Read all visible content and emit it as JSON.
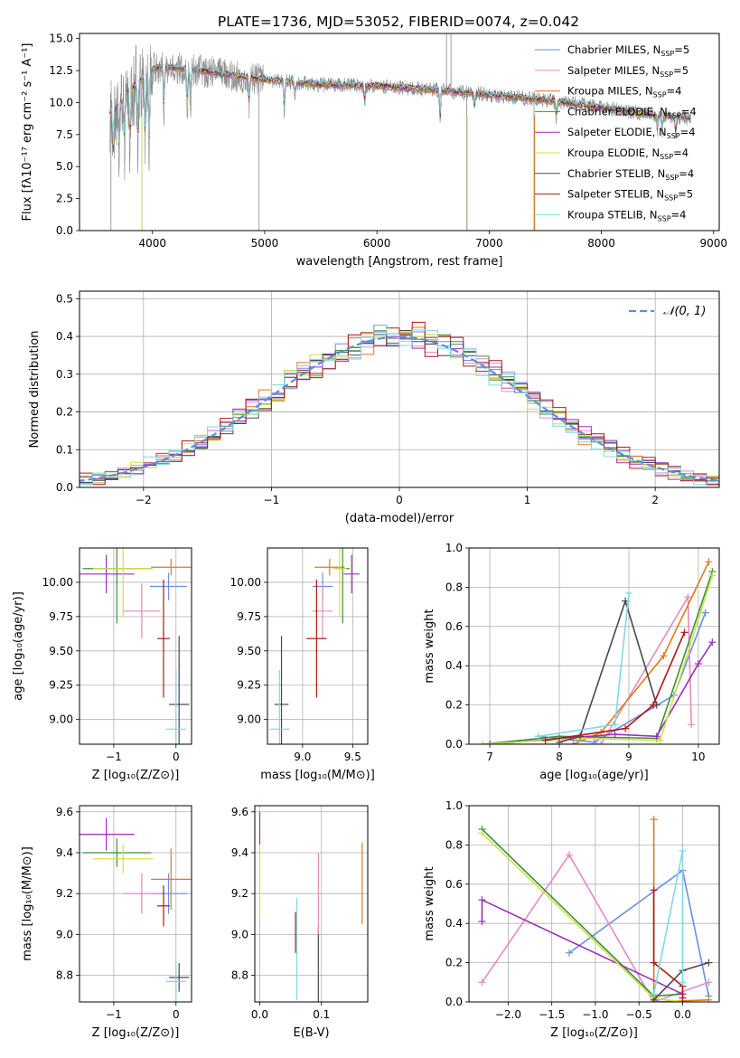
{
  "title": "PLATE=1736, MJD=53052, FIBERID=0074, z=0.042",
  "colors": {
    "chabrier_miles": "#6b8ee6",
    "salpeter_miles": "#e58ac3",
    "kroupa_miles": "#e07a1a",
    "chabrier_elodie": "#3f8f3f",
    "salpeter_elodie": "#9b30b8",
    "kroupa_elodie": "#cfe04a",
    "chabrier_stelib": "#4a4a4a",
    "salpeter_stelib": "#b01818",
    "kroupa_stelib": "#7fd8e6",
    "gaussian": "#5b8ed8",
    "data": "#8a8a8a"
  },
  "chart_data": [
    {
      "id": "spectrum",
      "type": "line",
      "xlabel": "wavelength [Angstrom, rest frame]",
      "ylabel": "Flux [fλ10⁻¹⁷ erg cm⁻² s⁻¹ A⁻¹]",
      "xlim": [
        3350,
        9050
      ],
      "ylim": [
        0,
        15.4
      ],
      "xticks": [
        "4000",
        "5000",
        "6000",
        "7000",
        "8000",
        "9000"
      ],
      "yticks": [
        "0.0",
        "2.5",
        "5.0",
        "7.5",
        "10.0",
        "12.5",
        "15.0"
      ],
      "legend_position": "top-right",
      "legend": [
        {
          "name": "Chabrier MILES",
          "n": "5"
        },
        {
          "name": "Salpeter MILES",
          "n": "5"
        },
        {
          "name": "Kroupa MILES",
          "n": "4"
        },
        {
          "name": "Chabrier ELODIE",
          "n": "4"
        },
        {
          "name": "Salpeter ELODIE",
          "n": "4"
        },
        {
          "name": "Kroupa ELODIE",
          "n": "4"
        },
        {
          "name": "Chabrier STELIB",
          "n": "4"
        },
        {
          "name": "Salpeter STELIB",
          "n": "5"
        },
        {
          "name": "Kroupa STELIB",
          "n": "4"
        }
      ],
      "nssp_label": "N",
      "nssp_sub": "SSP",
      "continuum": [
        [
          3620,
          9.2
        ],
        [
          3700,
          9.8
        ],
        [
          3800,
          11.0
        ],
        [
          3900,
          11.8
        ],
        [
          4000,
          12.6
        ],
        [
          4100,
          12.8
        ],
        [
          4300,
          12.6
        ],
        [
          4500,
          12.4
        ],
        [
          4800,
          12.0
        ],
        [
          5000,
          11.8
        ],
        [
          5500,
          11.4
        ],
        [
          6000,
          11.3
        ],
        [
          6500,
          11.0
        ],
        [
          7000,
          10.6
        ],
        [
          7500,
          10.2
        ],
        [
          8000,
          9.6
        ],
        [
          8500,
          9.0
        ],
        [
          8800,
          8.8
        ]
      ],
      "features": [
        [
          3650,
          4.2
        ],
        [
          3700,
          3.8
        ],
        [
          3750,
          3.8
        ],
        [
          3800,
          5.0
        ],
        [
          3870,
          5.0
        ],
        [
          3935,
          6.2
        ],
        [
          3970,
          6.8
        ],
        [
          4102,
          3.6
        ],
        [
          4310,
          3.0
        ],
        [
          4340,
          3.2
        ],
        [
          4861,
          2.2
        ],
        [
          5175,
          2.4
        ],
        [
          5270,
          1.2
        ],
        [
          5890,
          1.4
        ],
        [
          6563,
          2.6
        ],
        [
          6870,
          1.2
        ],
        [
          7600,
          1.4
        ],
        [
          8500,
          1.2
        ],
        [
          8542,
          1.5
        ],
        [
          8662,
          1.5
        ]
      ],
      "spikes": [
        [
          3630,
          0.0
        ],
        [
          3905,
          0.0
        ],
        [
          4950,
          0.0
        ],
        [
          6800,
          0.0
        ],
        [
          7400,
          0.0
        ],
        [
          6620,
          15.4
        ],
        [
          6660,
          15.4
        ]
      ]
    },
    {
      "id": "residual-histogram",
      "type": "line",
      "xlabel": "(data-model)/error",
      "ylabel": "Normed distribution",
      "xlim": [
        -2.5,
        2.5
      ],
      "ylim": [
        0,
        0.52
      ],
      "xticks": [
        "−2",
        "−1",
        "0",
        "1",
        "2"
      ],
      "yticks": [
        "0.0",
        "0.1",
        "0.2",
        "0.3",
        "0.4",
        "0.5"
      ],
      "bin_width": 0.1,
      "legend_position": "top-right",
      "legend": "𝒩(0, 1)",
      "gaussian": {
        "mean": 0,
        "sigma": 1
      },
      "series_noise_amp": [
        0.022,
        0.026,
        0.03,
        0.024,
        0.032,
        0.028,
        0.02,
        0.034,
        0.03
      ]
    },
    {
      "id": "age-vs-Z",
      "type": "scatter",
      "xlabel": "Z [log₁₀(Z/Z⊙)]",
      "ylabel": "age  [log₁₀(age/yr)]",
      "xlim": [
        -1.55,
        0.25
      ],
      "ylim": [
        8.82,
        10.25
      ],
      "xticks": [
        "−1",
        "0"
      ],
      "xtick_values": [
        -1,
        0
      ],
      "yticks": [
        "9.00",
        "9.25",
        "9.50",
        "9.75",
        "10.00"
      ],
      "ytick_values": [
        9.0,
        9.25,
        9.5,
        9.75,
        10.0
      ],
      "points": [
        {
          "x": -0.12,
          "xerr": 0.3,
          "y": 9.97,
          "yerr": 0.1,
          "c": "chabrier_miles"
        },
        {
          "x": -0.55,
          "xerr": 0.3,
          "y": 9.79,
          "yerr": 0.2,
          "c": "salpeter_miles"
        },
        {
          "x": -0.08,
          "xerr": 0.32,
          "y": 10.11,
          "yerr": 0.06,
          "c": "kroupa_miles"
        },
        {
          "x": -0.95,
          "xerr": 0.55,
          "y": 10.1,
          "yerr": 0.4,
          "c": "chabrier_elodie"
        },
        {
          "x": -1.12,
          "xerr": 0.45,
          "y": 10.06,
          "yerr": 0.14,
          "c": "salpeter_elodie"
        },
        {
          "x": -0.85,
          "xerr": 0.48,
          "y": 10.1,
          "yerr": 0.35,
          "c": "kroupa_elodie"
        },
        {
          "x": 0.05,
          "xerr": 0.16,
          "y": 9.11,
          "yerr": 0.5,
          "c": "chabrier_stelib"
        },
        {
          "x": -0.2,
          "xerr": 0.1,
          "y": 9.59,
          "yerr": 0.43,
          "c": "salpeter_stelib"
        },
        {
          "x": 0.0,
          "xerr": 0.16,
          "y": 8.93,
          "yerr": 0.43,
          "c": "kroupa_stelib"
        }
      ]
    },
    {
      "id": "age-vs-mass",
      "type": "scatter",
      "xlabel": "mass [log₁₀(M/M⊙)]",
      "ylabel": "",
      "xlim": [
        8.65,
        9.65
      ],
      "ylim": [
        8.82,
        10.25
      ],
      "xticks": [
        "9.0",
        "9.5"
      ],
      "xtick_values": [
        9.0,
        9.5
      ],
      "yticks": [
        "9.00",
        "9.25",
        "9.50",
        "9.75",
        "10.00"
      ],
      "ytick_values": [
        9.0,
        9.25,
        9.5,
        9.75,
        10.0
      ],
      "points": [
        {
          "x": 9.2,
          "xerr": 0.1,
          "y": 9.97,
          "yerr": 0.1,
          "c": "chabrier_miles"
        },
        {
          "x": 9.2,
          "xerr": 0.1,
          "y": 9.79,
          "yerr": 0.2,
          "c": "salpeter_miles"
        },
        {
          "x": 9.27,
          "xerr": 0.15,
          "y": 10.11,
          "yerr": 0.06,
          "c": "kroupa_miles"
        },
        {
          "x": 9.4,
          "xerr": 0.07,
          "y": 10.1,
          "yerr": 0.4,
          "c": "chabrier_elodie"
        },
        {
          "x": 9.49,
          "xerr": 0.08,
          "y": 10.06,
          "yerr": 0.14,
          "c": "salpeter_elodie"
        },
        {
          "x": 9.37,
          "xerr": 0.07,
          "y": 10.1,
          "yerr": 0.35,
          "c": "kroupa_elodie"
        },
        {
          "x": 8.79,
          "xerr": 0.07,
          "y": 9.11,
          "yerr": 0.5,
          "c": "chabrier_stelib"
        },
        {
          "x": 9.14,
          "xerr": 0.1,
          "y": 9.59,
          "yerr": 0.43,
          "c": "salpeter_stelib"
        },
        {
          "x": 8.77,
          "xerr": 0.1,
          "y": 8.93,
          "yerr": 0.43,
          "c": "kroupa_stelib"
        }
      ]
    },
    {
      "id": "massweight-vs-age",
      "type": "line",
      "xlabel": "age  [log₁₀(age/yr)]",
      "ylabel": "mass weight",
      "xlim": [
        6.7,
        10.3
      ],
      "ylim": [
        0,
        1.0
      ],
      "xticks": [
        "7",
        "8",
        "9",
        "10"
      ],
      "xtick_values": [
        7,
        8,
        9,
        10
      ],
      "yticks": [
        "0.0",
        "0.2",
        "0.4",
        "0.6",
        "0.8",
        "1.0"
      ],
      "ytick_values": [
        0,
        0.2,
        0.4,
        0.6,
        0.8,
        1.0
      ],
      "series": [
        {
          "c": "chabrier_miles",
          "x": [
            7.7,
            8.5,
            9.65,
            10.1
          ],
          "y": [
            0.04,
            0.01,
            0.25,
            0.67
          ]
        },
        {
          "c": "salpeter_miles",
          "x": [
            7.0,
            8.6,
            9.85,
            9.9
          ],
          "y": [
            0.0,
            0.0,
            0.75,
            0.1
          ]
        },
        {
          "c": "kroupa_miles",
          "x": [
            8.2,
            8.6,
            9.5,
            10.15
          ],
          "y": [
            0.0,
            0.06,
            0.45,
            0.93
          ]
        },
        {
          "c": "chabrier_elodie",
          "x": [
            6.9,
            8.0,
            9.4,
            10.2
          ],
          "y": [
            0.0,
            0.04,
            0.03,
            0.88
          ]
        },
        {
          "c": "salpeter_elodie",
          "x": [
            7.0,
            8.8,
            9.4,
            10.0,
            10.2
          ],
          "y": [
            0.0,
            0.05,
            0.04,
            0.41,
            0.52
          ]
        },
        {
          "c": "kroupa_elodie",
          "x": [
            6.9,
            8.3,
            9.45,
            10.2
          ],
          "y": [
            0.0,
            0.03,
            0.02,
            0.86
          ]
        },
        {
          "c": "chabrier_stelib",
          "x": [
            8.0,
            8.3,
            8.95,
            9.4
          ],
          "y": [
            0.01,
            0.04,
            0.73,
            0.2
          ]
        },
        {
          "c": "salpeter_stelib",
          "x": [
            7.8,
            8.95,
            9.35,
            9.8
          ],
          "y": [
            0.02,
            0.08,
            0.2,
            0.57
          ]
        },
        {
          "c": "kroupa_stelib",
          "x": [
            7.7,
            8.8,
            9.0
          ],
          "y": [
            0.04,
            0.1,
            0.77
          ]
        }
      ]
    },
    {
      "id": "mass-vs-Z",
      "type": "scatter",
      "xlabel": "Z [log₁₀(Z/Z⊙)]",
      "ylabel": "mass [log₁₀(M/M⊙)]",
      "xlim": [
        -1.55,
        0.25
      ],
      "ylim": [
        8.67,
        9.63
      ],
      "xticks": [
        "−1",
        "0"
      ],
      "xtick_values": [
        -1,
        0
      ],
      "yticks": [
        "8.8",
        "9.0",
        "9.2",
        "9.4",
        "9.6"
      ],
      "ytick_values": [
        8.8,
        9.0,
        9.2,
        9.4,
        9.6
      ],
      "points": [
        {
          "x": -0.12,
          "xerr": 0.3,
          "y": 9.2,
          "yerr": 0.1,
          "c": "chabrier_miles"
        },
        {
          "x": -0.55,
          "xerr": 0.3,
          "y": 9.2,
          "yerr": 0.1,
          "c": "salpeter_miles"
        },
        {
          "x": -0.08,
          "xerr": 0.32,
          "y": 9.27,
          "yerr": 0.15,
          "c": "kroupa_miles"
        },
        {
          "x": -0.95,
          "xerr": 0.55,
          "y": 9.4,
          "yerr": 0.07,
          "c": "chabrier_elodie"
        },
        {
          "x": -1.12,
          "xerr": 0.45,
          "y": 9.49,
          "yerr": 0.08,
          "c": "salpeter_elodie"
        },
        {
          "x": -0.85,
          "xerr": 0.48,
          "y": 9.37,
          "yerr": 0.07,
          "c": "kroupa_elodie"
        },
        {
          "x": 0.05,
          "xerr": 0.16,
          "y": 8.79,
          "yerr": 0.07,
          "c": "chabrier_stelib"
        },
        {
          "x": -0.2,
          "xerr": 0.1,
          "y": 9.14,
          "yerr": 0.1,
          "c": "salpeter_stelib"
        },
        {
          "x": 0.0,
          "xerr": 0.16,
          "y": 8.77,
          "yerr": 0.1,
          "c": "kroupa_stelib"
        }
      ]
    },
    {
      "id": "mass-vs-ebv",
      "type": "scatter",
      "xlabel": "E(B-V)",
      "ylabel": "",
      "xlim": [
        -0.008,
        0.175
      ],
      "ylim": [
        8.67,
        9.63
      ],
      "xticks": [
        "0.0",
        "0.1"
      ],
      "xtick_values": [
        0.0,
        0.1
      ],
      "yticks": [
        "8.8",
        "9.0",
        "9.2",
        "9.4",
        "9.6"
      ],
      "ytick_values": [
        8.8,
        9.0,
        9.2,
        9.4,
        9.6
      ],
      "points": [
        {
          "x": 0.0,
          "xerr": 0,
          "y": 9.25,
          "yerr": 0.17,
          "c": "kroupa_elodie"
        },
        {
          "x": 0.0,
          "xerr": 0,
          "y": 9.52,
          "yerr": 0.08,
          "c": "salpeter_elodie"
        },
        {
          "x": 0.058,
          "xerr": 0,
          "y": 9.01,
          "yerr": 0.1,
          "c": "salpeter_stelib"
        },
        {
          "x": 0.06,
          "xerr": 0,
          "y": 8.93,
          "yerr": 0.25,
          "c": "kroupa_stelib"
        },
        {
          "x": 0.095,
          "xerr": 0,
          "y": 8.79,
          "yerr": 0.25,
          "c": "chabrier_stelib"
        },
        {
          "x": 0.095,
          "xerr": 0,
          "y": 9.2,
          "yerr": 0.2,
          "c": "salpeter_miles"
        },
        {
          "x": 0.166,
          "xerr": 0,
          "y": 9.25,
          "yerr": 0.2,
          "c": "kroupa_miles"
        }
      ]
    },
    {
      "id": "massweight-vs-Z",
      "type": "line",
      "xlabel": "Z [log₁₀(Z/Z⊙)]",
      "ylabel": "mass weight",
      "xlim": [
        -2.45,
        0.42
      ],
      "ylim": [
        0,
        1.0
      ],
      "xticks": [
        "−2.0",
        "−1.5",
        "−1.0",
        "−0.5",
        "0.0"
      ],
      "xtick_values": [
        -2.0,
        -1.5,
        -1.0,
        -0.5,
        0.0
      ],
      "yticks": [
        "0.0",
        "0.2",
        "0.4",
        "0.6",
        "0.8",
        "1.0"
      ],
      "ytick_values": [
        0,
        0.2,
        0.4,
        0.6,
        0.8,
        1.0
      ],
      "series": [
        {
          "c": "chabrier_miles",
          "x": [
            -1.3,
            0.0,
            0.3
          ],
          "y": [
            0.25,
            0.67,
            0.03
          ]
        },
        {
          "c": "salpeter_miles",
          "x": [
            -2.3,
            -1.3,
            -0.33,
            0.3
          ],
          "y": [
            0.1,
            0.75,
            0.0,
            0.1
          ]
        },
        {
          "c": "kroupa_miles",
          "x": [
            -0.33,
            -0.33,
            0.3
          ],
          "y": [
            0.93,
            0.0,
            0.01
          ]
        },
        {
          "c": "chabrier_elodie",
          "x": [
            -2.3,
            -0.33,
            0.0
          ],
          "y": [
            0.88,
            0.03,
            0.04
          ]
        },
        {
          "c": "salpeter_elodie",
          "x": [
            -2.3,
            -2.3,
            0.0
          ],
          "y": [
            0.41,
            0.52,
            0.04
          ]
        },
        {
          "c": "kroupa_elodie",
          "x": [
            -2.3,
            -0.33,
            0.0
          ],
          "y": [
            0.86,
            0.02,
            0.0
          ]
        },
        {
          "c": "chabrier_stelib",
          "x": [
            -0.33,
            0.0,
            0.3
          ],
          "y": [
            0.01,
            0.16,
            0.2
          ]
        },
        {
          "c": "salpeter_stelib",
          "x": [
            -0.33,
            -0.33,
            0.0,
            0.0
          ],
          "y": [
            0.57,
            0.2,
            0.08,
            0.02
          ]
        },
        {
          "c": "kroupa_stelib",
          "x": [
            -0.33,
            0.0,
            0.0
          ],
          "y": [
            0.04,
            0.77,
            0.1
          ]
        }
      ]
    }
  ]
}
